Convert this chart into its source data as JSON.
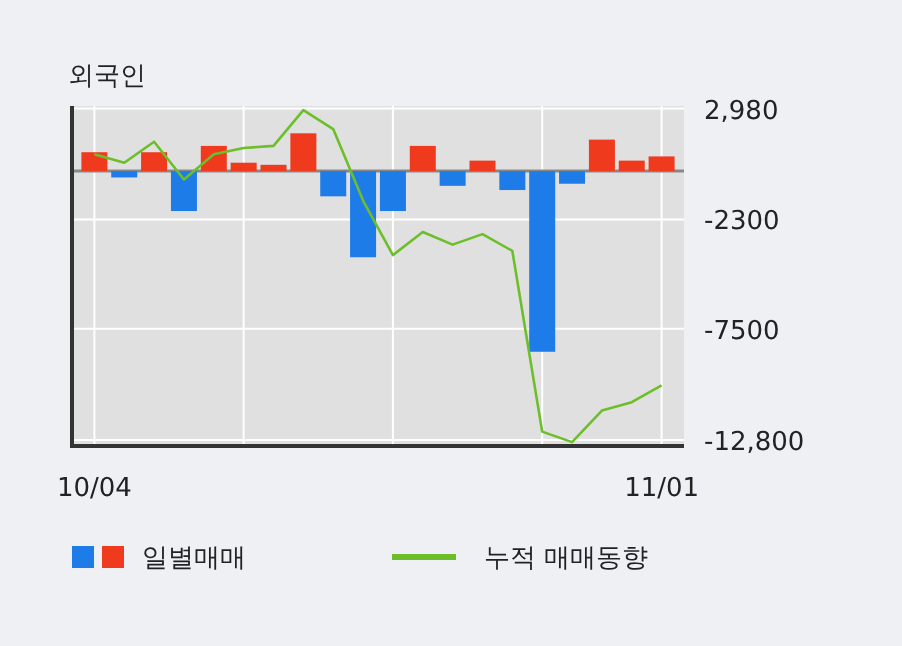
{
  "chart_data": {
    "type": "bar",
    "title": "외국인",
    "categories": [
      "10/04",
      null,
      null,
      null,
      null,
      null,
      null,
      null,
      null,
      null,
      null,
      null,
      null,
      null,
      null,
      null,
      null,
      null,
      null,
      "11/01"
    ],
    "series": [
      {
        "name": "일별매매",
        "colors": [
          "#f03a1e",
          "#1e7ce8",
          "#f03a1e",
          "#1e7ce8",
          "#f03a1e",
          "#f03a1e",
          "#f03a1e",
          "#f03a1e",
          "#1e7ce8",
          "#1e7ce8",
          "#1e7ce8",
          "#f03a1e",
          "#1e7ce8",
          "#f03a1e",
          "#1e7ce8",
          "#1e7ce8",
          "#1e7ce8",
          "#f03a1e",
          "#f03a1e",
          "#f03a1e"
        ],
        "values": [
          900,
          -300,
          900,
          -1900,
          1200,
          400,
          300,
          1800,
          -1200,
          -4100,
          -1900,
          1200,
          -700,
          500,
          -900,
          -8600,
          -600,
          1500,
          500,
          700
        ]
      },
      {
        "name": "누적 매매동향",
        "type": "line",
        "color": "#6cbf2a",
        "values": [
          800,
          400,
          1400,
          -400,
          800,
          1100,
          1200,
          2900,
          2000,
          -1400,
          -4000,
          -2900,
          -3500,
          -3000,
          -3800,
          -12400,
          -12900,
          -11400,
          -11000,
          -10200
        ]
      }
    ],
    "ylim": [
      -13085,
      3100
    ],
    "yticks": [
      {
        "value": 2980,
        "label": "2,980"
      },
      -2300,
      -7500,
      {
        "value": -12800,
        "label": "-12,800"
      }
    ],
    "grid": true,
    "legend": "bottom"
  }
}
